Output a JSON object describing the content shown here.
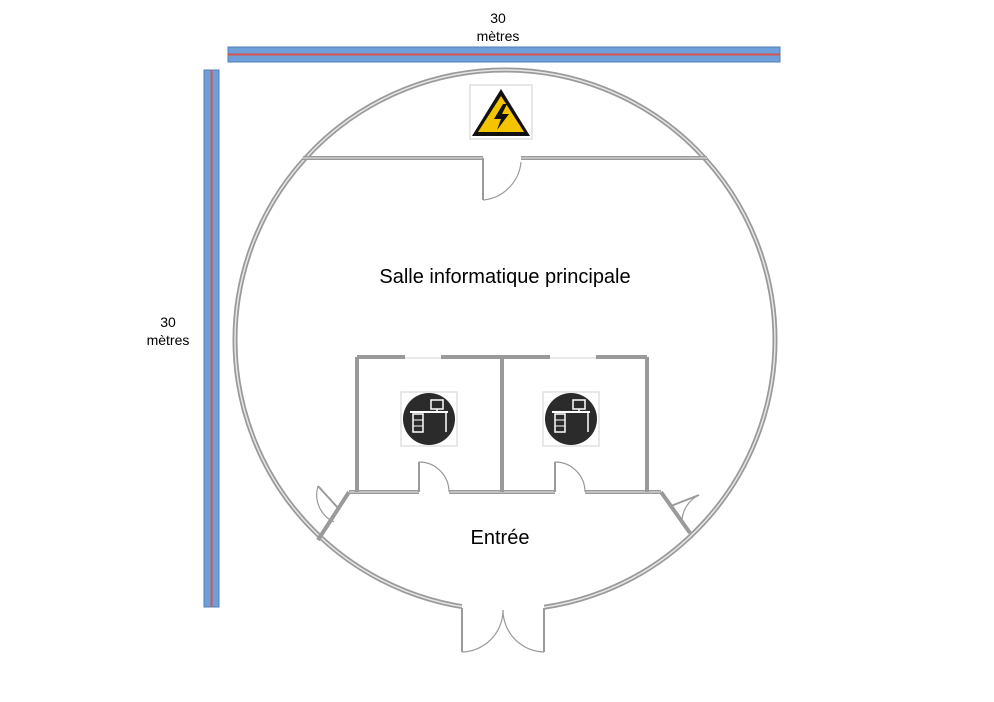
{
  "dimensions": {
    "top": {
      "value": "30",
      "unit": "mètres"
    },
    "left": {
      "value": "30",
      "unit": "mètres"
    }
  },
  "rooms": {
    "main": "Salle informatique principale",
    "entrance": "Entrée"
  },
  "icons": {
    "electrical": "high-voltage-warning-icon",
    "workstation": "computer-desk-icon"
  },
  "colors": {
    "scale_bar_fill": "#6f9fd8",
    "scale_bar_line": "#d9534f",
    "wall": "#9a9a9a",
    "warning_yellow": "#f5c400",
    "workstation_badge": "#2b2b2b"
  }
}
